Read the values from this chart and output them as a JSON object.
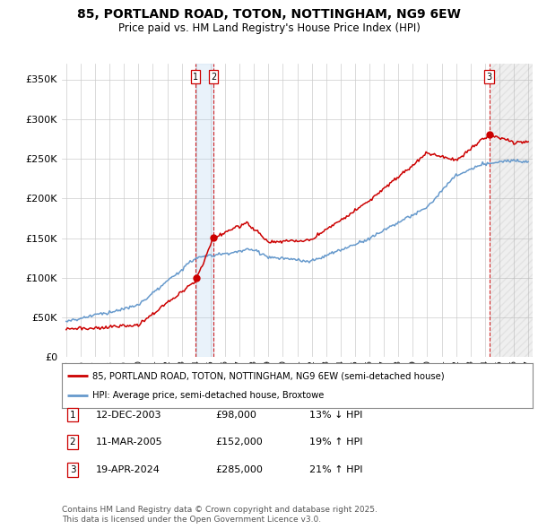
{
  "title": "85, PORTLAND ROAD, TOTON, NOTTINGHAM, NG9 6EW",
  "subtitle": "Price paid vs. HM Land Registry's House Price Index (HPI)",
  "legend_property": "85, PORTLAND ROAD, TOTON, NOTTINGHAM, NG9 6EW (semi-detached house)",
  "legend_hpi": "HPI: Average price, semi-detached house, Broxtowe",
  "table_rows": [
    {
      "label": "1",
      "date": "12-DEC-2003",
      "price": "£98,000",
      "change": "13% ↓ HPI"
    },
    {
      "label": "2",
      "date": "11-MAR-2005",
      "price": "£152,000",
      "change": "19% ↑ HPI"
    },
    {
      "label": "3",
      "date": "19-APR-2024",
      "price": "£285,000",
      "change": "21% ↑ HPI"
    }
  ],
  "footnote_line1": "Contains HM Land Registry data © Crown copyright and database right 2025.",
  "footnote_line2": "This data is licensed under the Open Government Licence v3.0.",
  "property_color": "#cc0000",
  "hpi_color": "#6699cc",
  "vline_color": "#cc0000",
  "plot_bg": "#ffffff",
  "grid_color": "#cccccc",
  "ylim": [
    0,
    370000
  ],
  "yticks": [
    0,
    50000,
    100000,
    150000,
    200000,
    250000,
    300000,
    350000
  ],
  "xlim_start": 1995,
  "xlim_end": 2027,
  "sale1_year": 2003.96,
  "sale2_year": 2005.19,
  "sale3_year": 2024.3,
  "sale1_price": 98000,
  "sale2_price": 152000,
  "sale3_price": 285000,
  "fig_width": 6.0,
  "fig_height": 5.9
}
